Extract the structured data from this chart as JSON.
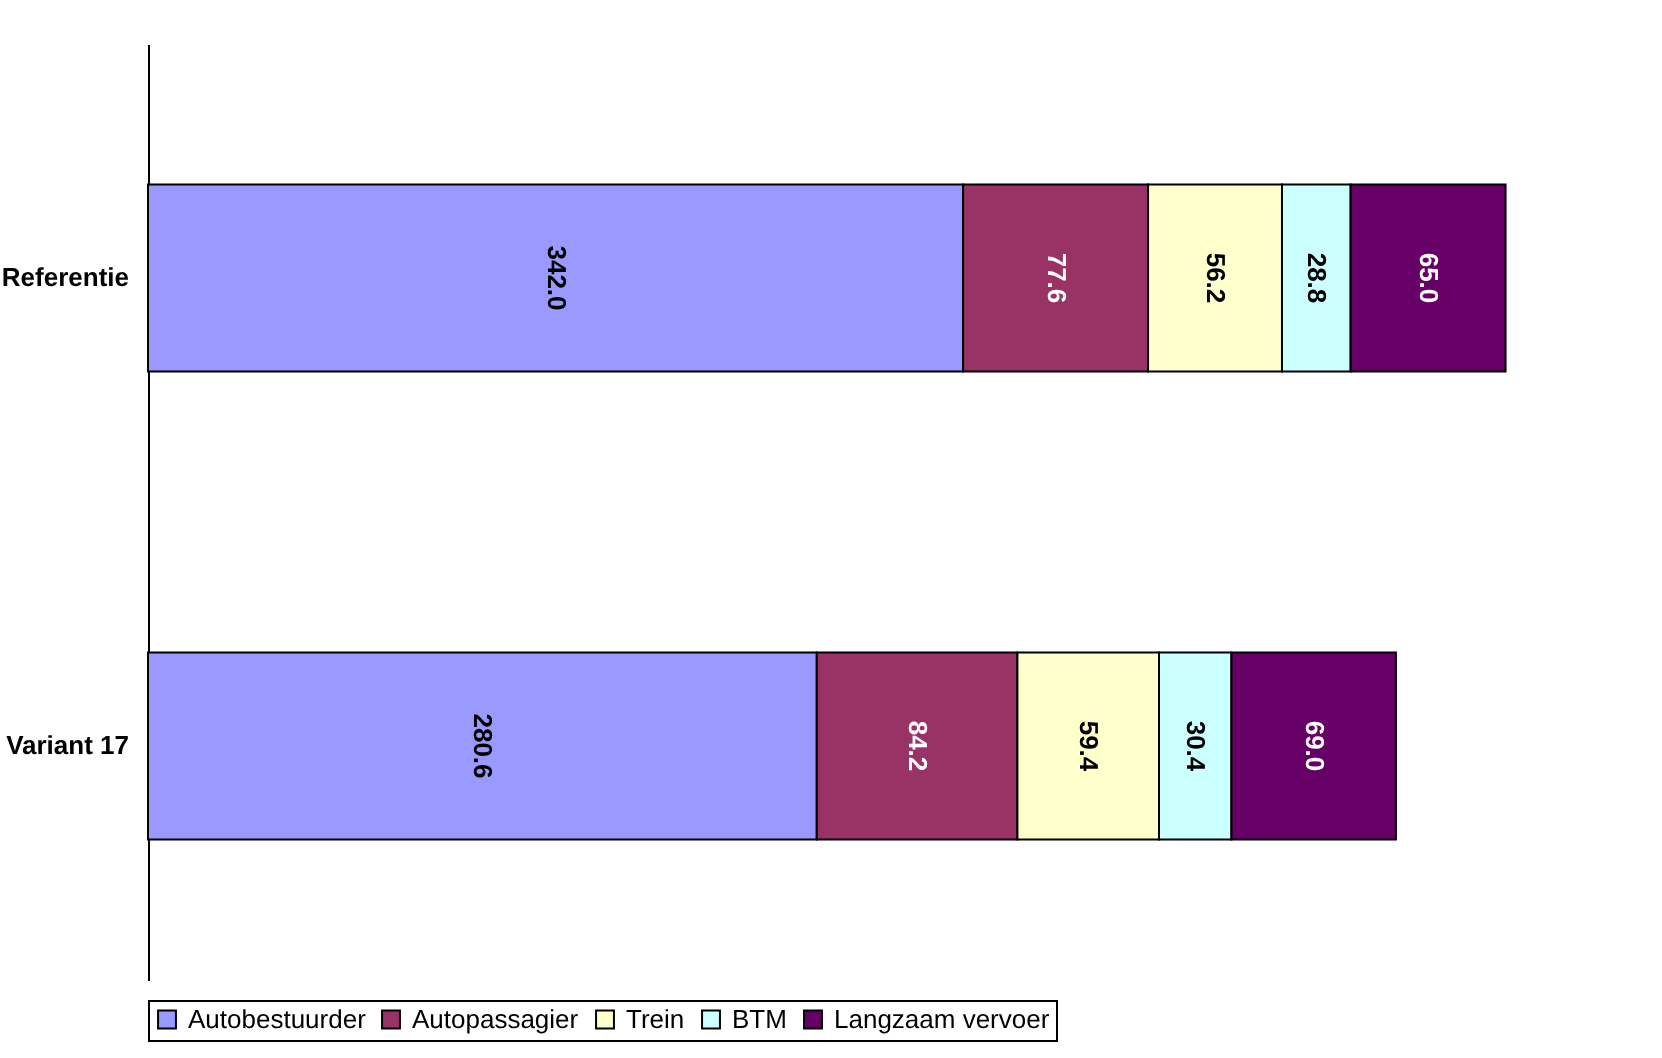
{
  "chart_data": {
    "type": "bar",
    "orientation": "horizontal",
    "stacked": true,
    "categories": [
      "Referentie",
      "Variant 17"
    ],
    "xlim": [
      0,
      600
    ],
    "tick_labels": "y",
    "legend": "bottom",
    "series": [
      {
        "name": "Autobestuurder",
        "color": "#9999ff",
        "values": [
          342.0,
          280.6
        ],
        "value_labels": [
          "342.0",
          "280.6"
        ]
      },
      {
        "name": "Autopassagier",
        "color": "#993366",
        "values": [
          77.6,
          84.2
        ],
        "value_labels": [
          "77.6",
          "84.2"
        ]
      },
      {
        "name": "Trein",
        "color": "#ffffcc",
        "values": [
          56.2,
          59.4
        ],
        "value_labels": [
          "56.2",
          "59.4"
        ]
      },
      {
        "name": "BTM",
        "color": "#ccffff",
        "values": [
          28.8,
          30.4
        ],
        "value_labels": [
          "28.8",
          "30.4"
        ]
      },
      {
        "name": "Langzaam vervoer",
        "color": "#660066",
        "values": [
          65.0,
          69.0
        ],
        "value_labels": [
          "65.0",
          "69.0"
        ]
      }
    ]
  }
}
